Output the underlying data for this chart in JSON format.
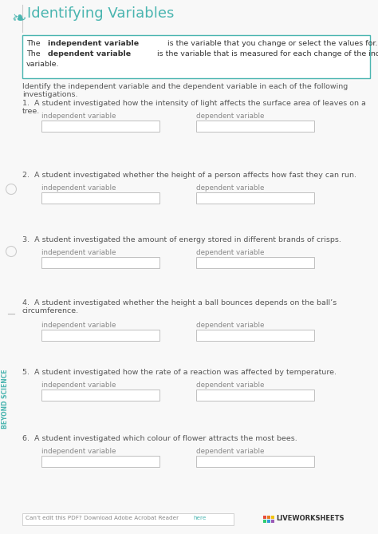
{
  "title": "Identifying Variables",
  "bg_color": "#f8f8f8",
  "title_color": "#4ab5b0",
  "title_fontsize": 13,
  "definition_box_color": "#4ab5b0",
  "instruction": "Identify the independent variable and the dependent variable in each of the following investigations.",
  "questions": [
    "1.  A student investigated how the intensity of light affects the surface area of leaves on a tree.",
    "2.  A student investigated whether the height of a person affects how fast they can run.",
    "3.  A student investigated the amount of energy stored in different brands of crisps.",
    "4.  A student investigated whether the height a ball bounces depends on the ball’s circumference.",
    "5.  A student investigated how the rate of a reaction was affected by temperature.",
    "6.  A student investigated which colour of flower attracts the most bees."
  ],
  "q_multiline": [
    false,
    false,
    false,
    true,
    false,
    false
  ],
  "label_indep": "independent variable",
  "label_dep": "dependent variable",
  "text_color": "#555555",
  "label_color": "#888888",
  "sidebar_text": "BEYOND SCIENCE",
  "logo_color": "#4ab5b0",
  "footer_text": "Can't edit this PDF? Download Adobe Acrobat Reader ",
  "footer_link": "here",
  "lw_colors": [
    "#e74c3c",
    "#e67e22",
    "#f1c40f",
    "#2ecc71",
    "#3498db",
    "#9b59b6"
  ]
}
